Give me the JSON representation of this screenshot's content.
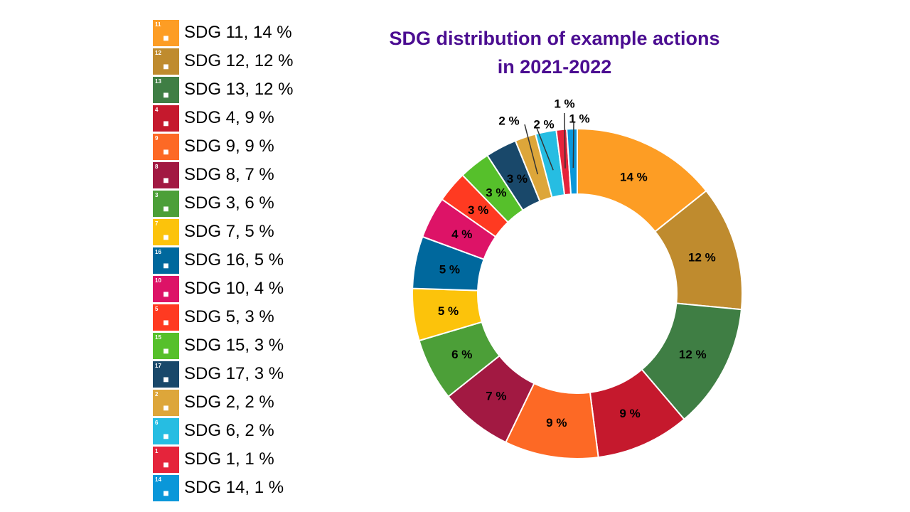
{
  "chart_data": {
    "type": "pie",
    "subtype": "donut",
    "title_lines": [
      "SDG distribution of example actions",
      "in 2021-2022"
    ],
    "legend_placement": "left",
    "slices": [
      {
        "name": "SDG 11",
        "number": "11",
        "value": 14,
        "label": "14 %",
        "legend": "SDG 11, 14 %",
        "color": "#FD9D24"
      },
      {
        "name": "SDG 12",
        "number": "12",
        "value": 12,
        "label": "12 %",
        "legend": "SDG 12, 12 %",
        "color": "#BF8B2E"
      },
      {
        "name": "SDG 13",
        "number": "13",
        "value": 12,
        "label": "12 %",
        "legend": "SDG 13, 12 %",
        "color": "#3F7E44"
      },
      {
        "name": "SDG 4",
        "number": "4",
        "value": 9,
        "label": "9 %",
        "legend": "SDG 4, 9 %",
        "color": "#C5192D"
      },
      {
        "name": "SDG 9",
        "number": "9",
        "value": 9,
        "label": "9 %",
        "legend": "SDG 9, 9 %",
        "color": "#FD6925"
      },
      {
        "name": "SDG 8",
        "number": "8",
        "value": 7,
        "label": "7 %",
        "legend": "SDG 8, 7 %",
        "color": "#A21942"
      },
      {
        "name": "SDG 3",
        "number": "3",
        "value": 6,
        "label": "6 %",
        "legend": "SDG 3, 6 %",
        "color": "#4C9F38"
      },
      {
        "name": "SDG 7",
        "number": "7",
        "value": 5,
        "label": "5 %",
        "legend": "SDG 7, 5 %",
        "color": "#FCC30B"
      },
      {
        "name": "SDG 16",
        "number": "16",
        "value": 5,
        "label": "5 %",
        "legend": "SDG 16, 5 %",
        "color": "#00689D"
      },
      {
        "name": "SDG 10",
        "number": "10",
        "value": 4,
        "label": "4 %",
        "legend": "SDG 10, 4 %",
        "color": "#DD1367"
      },
      {
        "name": "SDG 5",
        "number": "5",
        "value": 3,
        "label": "3 %",
        "legend": "SDG 5, 3 %",
        "color": "#FF3A21"
      },
      {
        "name": "SDG 15",
        "number": "15",
        "value": 3,
        "label": "3 %",
        "legend": "SDG 15, 3 %",
        "color": "#56C02B"
      },
      {
        "name": "SDG 17",
        "number": "17",
        "value": 3,
        "label": "3 %",
        "legend": "SDG 17, 3 %",
        "color": "#19486A"
      },
      {
        "name": "SDG 2",
        "number": "2",
        "value": 2,
        "label": "2 %",
        "legend": "SDG 2, 2 %",
        "color": "#DDA63A"
      },
      {
        "name": "SDG 6",
        "number": "6",
        "value": 2,
        "label": "2 %",
        "legend": "SDG 6, 2 %",
        "color": "#26BDE2"
      },
      {
        "name": "SDG 1",
        "number": "1",
        "value": 1,
        "label": "1 %",
        "legend": "SDG 1, 1 %",
        "color": "#E5243B"
      },
      {
        "name": "SDG 14",
        "number": "14",
        "value": 1,
        "label": "1 %",
        "legend": "SDG 14, 1 %",
        "color": "#0A97D9"
      }
    ]
  }
}
